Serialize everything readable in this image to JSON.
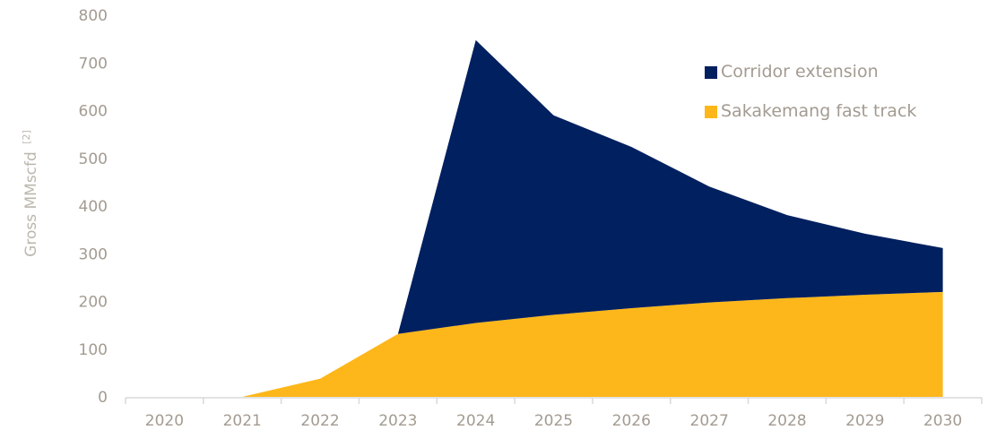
{
  "chart_data": {
    "type": "area",
    "stacked": true,
    "x": [
      "2020",
      "2021",
      "2022",
      "2023",
      "2024",
      "2025",
      "2026",
      "2027",
      "2028",
      "2029",
      "2030"
    ],
    "ylabel": "Gross MMscfd",
    "ylabel_superscript": "[2]",
    "ylim": [
      0,
      800
    ],
    "yticks": [
      "0",
      "100",
      "200",
      "300",
      "400",
      "500",
      "600",
      "700",
      "800"
    ],
    "grid": false,
    "legend_position": "top-right",
    "series": [
      {
        "name": "Sakakemang fast track",
        "color": "#fdb71a",
        "values": [
          0,
          0,
          38,
          132,
          155,
          172,
          186,
          198,
          207,
          214,
          220
        ]
      },
      {
        "name": "Corridor extension",
        "color": "#012060",
        "values": [
          0,
          0,
          0,
          0,
          593,
          418,
          338,
          243,
          174,
          128,
          92
        ]
      }
    ],
    "legend_order": [
      1,
      0
    ]
  }
}
